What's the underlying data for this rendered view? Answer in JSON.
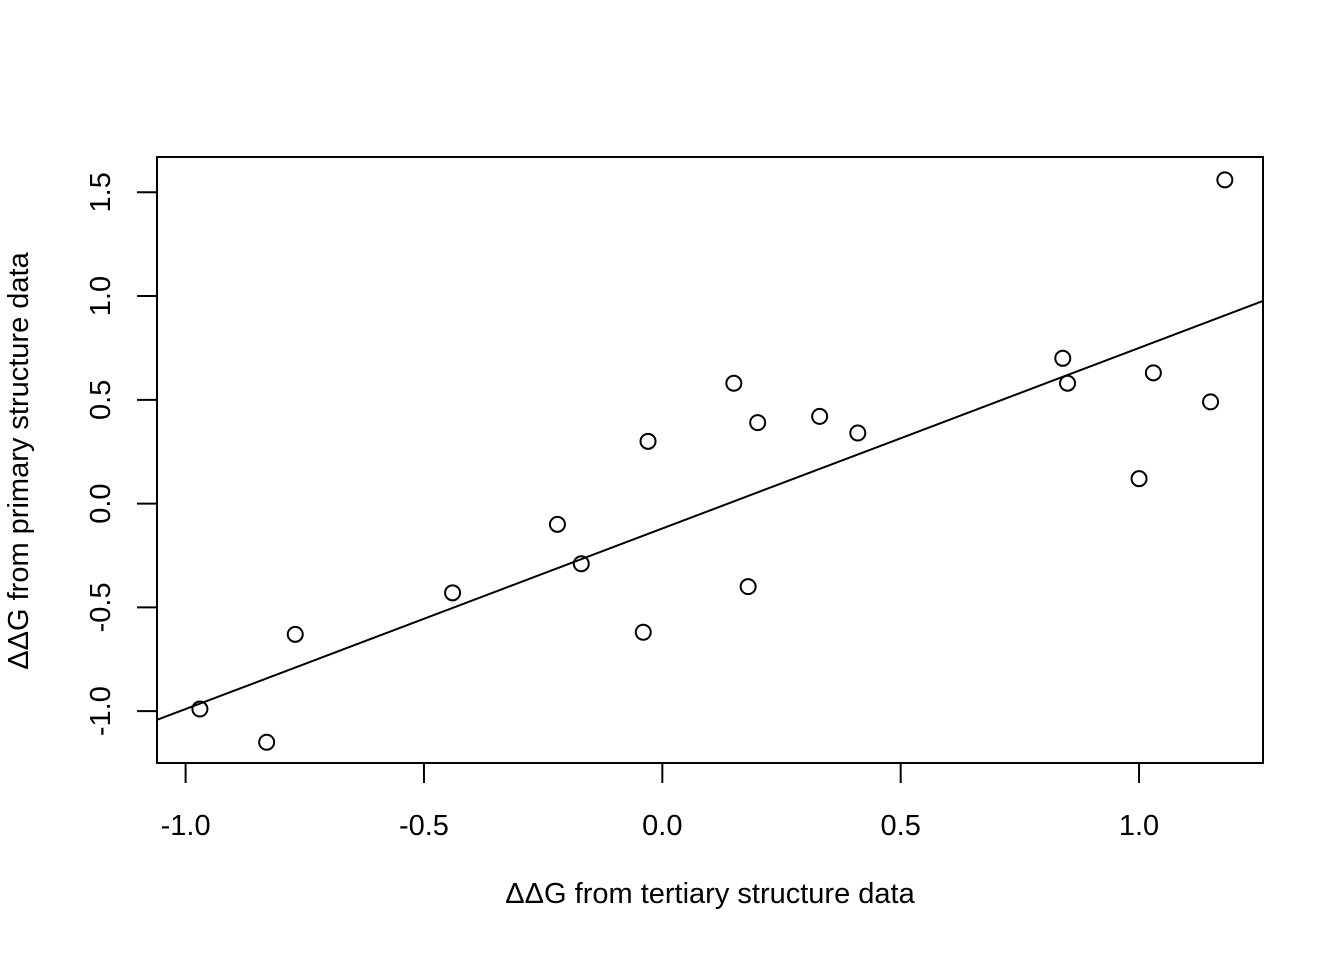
{
  "chart_data": {
    "type": "scatter",
    "title": "",
    "xlabel": "ΔΔG from tertiary structure data",
    "ylabel": "ΔΔG from primary structure data",
    "xlim": [
      -1.06,
      1.26
    ],
    "ylim": [
      -1.25,
      1.67
    ],
    "x_ticks": [
      -1.0,
      -0.5,
      0.0,
      0.5,
      1.0
    ],
    "x_tick_labels": [
      "-1.0",
      "-0.5",
      "0.0",
      "0.5",
      "1.0"
    ],
    "y_ticks": [
      -1.0,
      -0.5,
      0.0,
      0.5,
      1.0,
      1.5
    ],
    "y_tick_labels": [
      "-1.0",
      "-0.5",
      "0.0",
      "0.5",
      "1.0",
      "1.5"
    ],
    "grid": false,
    "legend": "none",
    "marker": "open-circle",
    "points": [
      {
        "x": -0.97,
        "y": -0.99
      },
      {
        "x": -0.83,
        "y": -1.15
      },
      {
        "x": -0.77,
        "y": -0.63
      },
      {
        "x": -0.44,
        "y": -0.43
      },
      {
        "x": -0.22,
        "y": -0.1
      },
      {
        "x": -0.17,
        "y": -0.29
      },
      {
        "x": -0.04,
        "y": -0.62
      },
      {
        "x": -0.03,
        "y": 0.3
      },
      {
        "x": 0.15,
        "y": 0.58
      },
      {
        "x": 0.18,
        "y": -0.4
      },
      {
        "x": 0.2,
        "y": 0.39
      },
      {
        "x": 0.33,
        "y": 0.42
      },
      {
        "x": 0.41,
        "y": 0.34
      },
      {
        "x": 0.84,
        "y": 0.7
      },
      {
        "x": 0.85,
        "y": 0.58
      },
      {
        "x": 1.0,
        "y": 0.12
      },
      {
        "x": 1.03,
        "y": 0.63
      },
      {
        "x": 1.15,
        "y": 0.49
      },
      {
        "x": 1.18,
        "y": 1.56
      }
    ],
    "fit_line": {
      "intercept": -0.12,
      "slope": 0.87
    }
  }
}
